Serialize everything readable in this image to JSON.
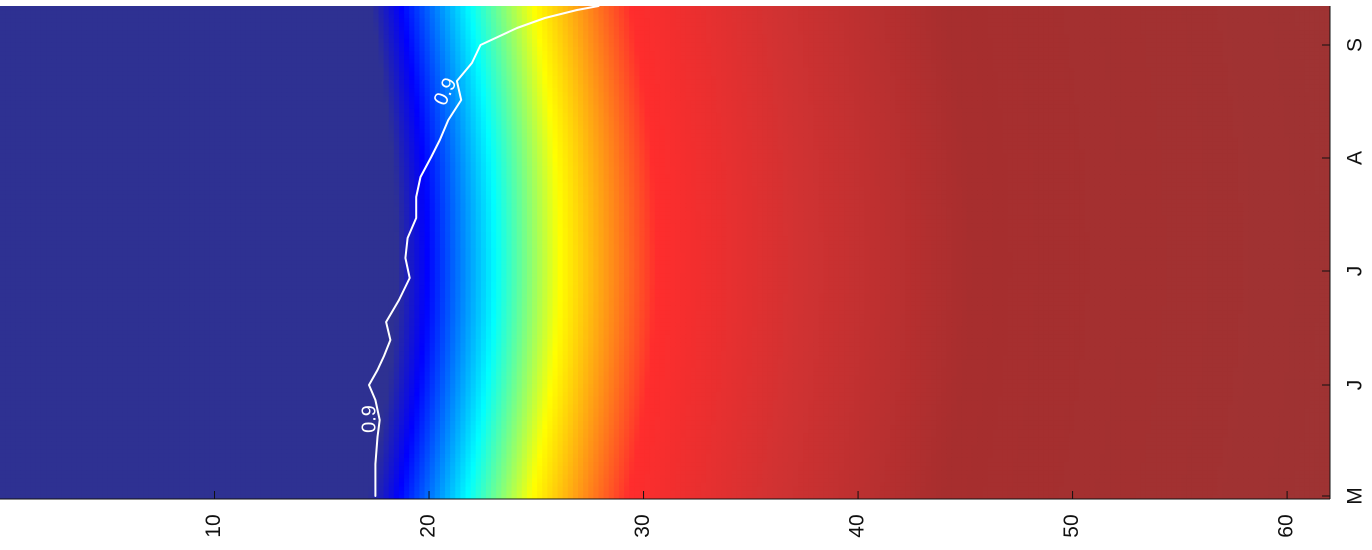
{
  "chart_data": {
    "type": "heatmap",
    "x_range": [
      0,
      62
    ],
    "x_ticks": [
      10,
      20,
      30,
      40,
      50,
      60
    ],
    "x_tick_labels": [
      "10",
      "20",
      "30",
      "40",
      "50",
      "60"
    ],
    "y_categories": [
      "M",
      "J",
      "J",
      "A",
      "S"
    ],
    "contour_level": 0.9,
    "contour_labels": [
      "0.9",
      "0.9"
    ],
    "contour_line": [
      [
        "M",
        17.5
      ],
      [
        "J",
        17.4
      ],
      [
        "J",
        18.0
      ],
      [
        "A",
        19.2
      ],
      [
        "S",
        20.7
      ]
    ],
    "colormap": [
      "#2e3192",
      "#0000ff",
      "#00ffff",
      "#ffff00",
      "#ff2d2d",
      "#a72e2e",
      "#9e3333"
    ],
    "colorbar": false
  }
}
